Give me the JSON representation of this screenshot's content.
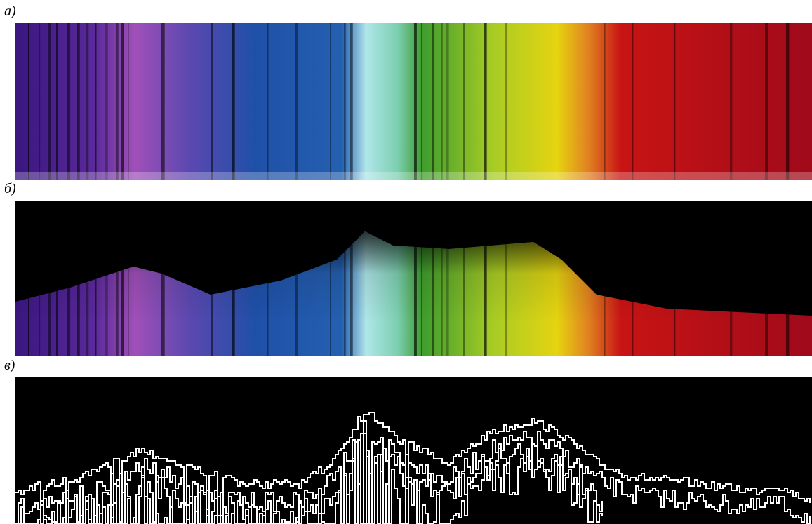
{
  "labels": [
    "а)",
    "б)",
    "в)"
  ]
}
